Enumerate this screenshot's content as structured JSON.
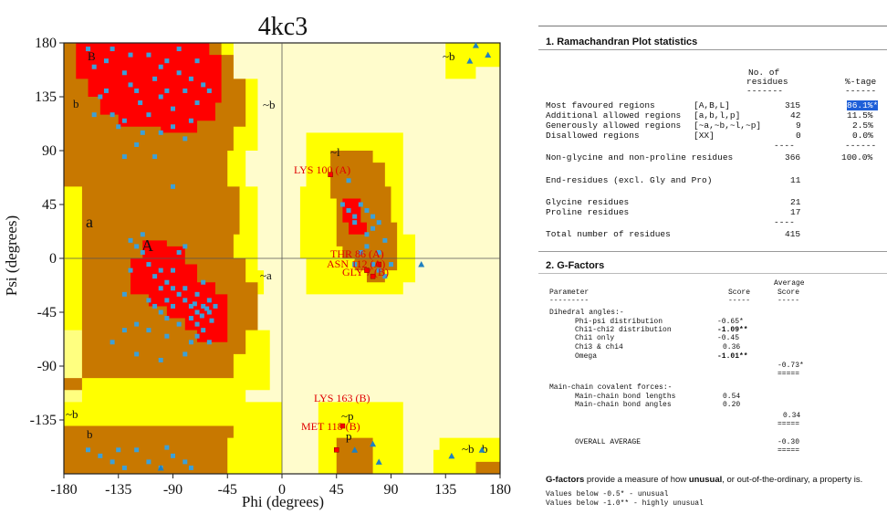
{
  "plot": {
    "title": "4kc3",
    "xlabel": "Phi (degrees)",
    "ylabel": "Psi (degrees)",
    "xticks": [
      "-180",
      "-135",
      "-90",
      "-45",
      "0",
      "45",
      "90",
      "135",
      "180"
    ],
    "yticks": [
      "180",
      "135",
      "90",
      "45",
      "0",
      "-45",
      "-90",
      "-135"
    ],
    "region_labels": {
      "B": "B",
      "b_top": "b",
      "b_bottom_left": "b",
      "b_neg": "~b",
      "a_small": "a",
      "A": "A",
      "l_tilde": "~l",
      "a_tilde": "~a",
      "p_tilde": "~p",
      "p": "p",
      "b_tr_tilde": "~b",
      "b_tr2": "~b",
      "b_br_tilde": "~b",
      "b_br": "b",
      "b_bl": "b",
      "l": "l",
      "b_right_top": "~b"
    },
    "residue_labels": [
      "LYS 100 (A)",
      "THR 86 (A)",
      "ASN 112 (A)",
      "GLY 7 (B)",
      "LYS 163 (B)",
      "MET 118 (B)"
    ]
  },
  "colors": {
    "core": "#ff0000",
    "allowed": "#c87800",
    "generous": "#ffff00",
    "generous_pale": "#ffff80",
    "disallowed": "#fffccc",
    "point": "#3ca0d8",
    "glycine": "#2080c0",
    "outlier": "#ff0000"
  },
  "chart_data": {
    "type": "scatter",
    "title": "4kc3",
    "xlabel": "Phi (degrees)",
    "ylabel": "Psi (degrees)",
    "xlim": [
      -180,
      180
    ],
    "ylim": [
      -180,
      180
    ],
    "grid": false,
    "legend": "none",
    "series": [
      {
        "marker": "square",
        "points": [
          [
            -120,
            140
          ],
          [
            -117,
            130
          ],
          [
            -110,
            120
          ],
          [
            -105,
            150
          ],
          [
            -100,
            135
          ],
          [
            -95,
            140
          ],
          [
            -130,
            155
          ],
          [
            -125,
            145
          ],
          [
            -90,
            125
          ],
          [
            -80,
            140
          ],
          [
            -75,
            150
          ],
          [
            -70,
            165
          ],
          [
            -65,
            145
          ],
          [
            -140,
            120
          ],
          [
            -135,
            110
          ],
          [
            -130,
            115
          ],
          [
            -115,
            105
          ],
          [
            -100,
            105
          ],
          [
            -90,
            110
          ],
          [
            -85,
            155
          ],
          [
            -60,
            140
          ],
          [
            -70,
            130
          ],
          [
            -145,
            165
          ],
          [
            -155,
            160
          ],
          [
            -150,
            135
          ],
          [
            -160,
            175
          ],
          [
            -140,
            175
          ],
          [
            -125,
            170
          ],
          [
            -110,
            170
          ],
          [
            -95,
            165
          ],
          [
            -85,
            175
          ],
          [
            -120,
            95
          ],
          [
            -130,
            85
          ],
          [
            -105,
            85
          ],
          [
            -90,
            60
          ],
          [
            -80,
            100
          ],
          [
            -75,
            115
          ],
          [
            -100,
            160
          ],
          [
            -145,
            140
          ],
          [
            -155,
            120
          ],
          [
            -100,
            -10
          ],
          [
            -95,
            -20
          ],
          [
            -90,
            -25
          ],
          [
            -85,
            -30
          ],
          [
            -80,
            -35
          ],
          [
            -75,
            -40
          ],
          [
            -70,
            -45
          ],
          [
            -65,
            -40
          ],
          [
            -60,
            -45
          ],
          [
            -95,
            -35
          ],
          [
            -90,
            -40
          ],
          [
            -80,
            -25
          ],
          [
            -70,
            -30
          ],
          [
            -65,
            -20
          ],
          [
            -100,
            -25
          ],
          [
            -105,
            -15
          ],
          [
            -110,
            -5
          ],
          [
            -115,
            5
          ],
          [
            -120,
            10
          ],
          [
            -125,
            15
          ],
          [
            -75,
            -50
          ],
          [
            -70,
            -55
          ],
          [
            -65,
            -60
          ],
          [
            -60,
            -35
          ],
          [
            -55,
            -40
          ],
          [
            -85,
            -55
          ],
          [
            -95,
            -50
          ],
          [
            -100,
            -45
          ],
          [
            -105,
            -40
          ],
          [
            -110,
            -35
          ],
          [
            -90,
            -10
          ],
          [
            -85,
            5
          ],
          [
            -80,
            10
          ],
          [
            -120,
            -55
          ],
          [
            -130,
            -60
          ],
          [
            -140,
            -70
          ],
          [
            -120,
            -80
          ],
          [
            -100,
            -85
          ],
          [
            -80,
            -80
          ],
          [
            -60,
            -70
          ],
          [
            -70,
            -65
          ],
          [
            -110,
            -60
          ],
          [
            -95,
            -65
          ],
          [
            -75,
            -70
          ],
          [
            -115,
            20
          ],
          [
            -125,
            -10
          ],
          [
            -130,
            -30
          ],
          [
            -62,
            -42
          ],
          [
            -66,
            -48
          ],
          [
            -58,
            -52
          ],
          [
            -72,
            -38
          ],
          [
            -150,
            -165
          ],
          [
            -140,
            -170
          ],
          [
            -130,
            -175
          ],
          [
            -120,
            -160
          ],
          [
            -110,
            -170
          ],
          [
            -100,
            -175
          ],
          [
            -90,
            -165
          ],
          [
            -80,
            -170
          ],
          [
            -75,
            -175
          ],
          [
            -160,
            -160
          ],
          [
            -135,
            -160
          ],
          [
            -95,
            -158
          ],
          [
            55,
            65
          ],
          [
            60,
            35
          ],
          [
            65,
            45
          ],
          [
            70,
            40
          ],
          [
            75,
            25
          ],
          [
            70,
            20
          ],
          [
            75,
            -5
          ],
          [
            65,
            5
          ],
          [
            80,
            -10
          ],
          [
            85,
            -15
          ],
          [
            60,
            30
          ],
          [
            55,
            40
          ],
          [
            70,
            10
          ],
          [
            80,
            5
          ],
          [
            90,
            -5
          ],
          [
            85,
            15
          ],
          [
            60,
            -5
          ],
          [
            75,
            35
          ],
          [
            80,
            30
          ],
          [
            50,
            45
          ]
        ]
      },
      {
        "marker": "triangle",
        "points": [
          [
            160,
            178
          ],
          [
            170,
            170
          ],
          [
            155,
            165
          ],
          [
            115,
            -5
          ],
          [
            60,
            -160
          ],
          [
            75,
            -155
          ],
          [
            140,
            -165
          ],
          [
            165,
            -160
          ],
          [
            -100,
            -175
          ],
          [
            80,
            -170
          ]
        ]
      },
      {
        "marker": "outlier",
        "points": [
          [
            40,
            70
          ],
          [
            50,
            -140
          ],
          [
            45,
            -160
          ],
          [
            80,
            -5
          ],
          [
            75,
            -15
          ],
          [
            70,
            -10
          ]
        ]
      }
    ]
  },
  "stats": {
    "heading": "1. Ramachandran Plot statistics",
    "col_headers": [
      "No. of",
      "residues",
      "%-tage"
    ],
    "rows": [
      {
        "label": "Most favoured regions",
        "code": "[A,B,L]",
        "n": "315",
        "pct": "86.1%*"
      },
      {
        "label": "Additional allowed regions",
        "code": "[a,b,l,p]",
        "n": "42",
        "pct": "11.5%"
      },
      {
        "label": "Generously allowed regions",
        "code": "[~a,~b,~l,~p]",
        "n": "9",
        "pct": "2.5%"
      },
      {
        "label": "Disallowed regions",
        "code": "[XX]",
        "n": "0",
        "pct": "0.0%"
      },
      {
        "label": "Non-glycine and non-proline residues",
        "code": "",
        "n": "366",
        "pct": "100.0%"
      },
      {
        "label": "End-residues (excl. Gly and Pro)",
        "code": "",
        "n": "11",
        "pct": ""
      },
      {
        "label": "Glycine residues",
        "code": "",
        "n": "21",
        "pct": ""
      },
      {
        "label": "Proline residues",
        "code": "",
        "n": "17",
        "pct": ""
      },
      {
        "label": "Total number of residues",
        "code": "",
        "n": "415",
        "pct": ""
      }
    ]
  },
  "gfactors": {
    "heading": "2. G-Factors",
    "col_param": "Parameter",
    "col_score": "Score",
    "col_avg": "Average",
    "col_avg2": "Score",
    "dihedral_head": "Dihedral angles:-",
    "dihedral": [
      {
        "label": "Phi-psi distribution",
        "score": "-0.65*"
      },
      {
        "label": "Chi1-chi2 distribution",
        "score": "-1.09**"
      },
      {
        "label": "Chi1 only",
        "score": "-0.45"
      },
      {
        "label": "Chi3 & chi4",
        "score": "0.36"
      },
      {
        "label": "Omega",
        "score": "-1.01**"
      }
    ],
    "dihedral_avg": "-0.73*",
    "mainchain_head": "Main-chain covalent forces:-",
    "mainchain": [
      {
        "label": "Main-chain bond lengths",
        "score": "0.54"
      },
      {
        "label": "Main-chain bond angles",
        "score": "0.20"
      }
    ],
    "mainchain_avg": "0.34",
    "overall_label": "OVERALL AVERAGE",
    "overall_avg": "-0.30",
    "desc_pre": "G-factors",
    "desc_mid1": " provide a measure of how ",
    "desc_bold": "unusual",
    "desc_mid2": ", or out-of-the-ordinary, a property is.",
    "note1": "Values below -0.5* - unusual",
    "note2": "Values below -1.0** - highly unusual"
  }
}
